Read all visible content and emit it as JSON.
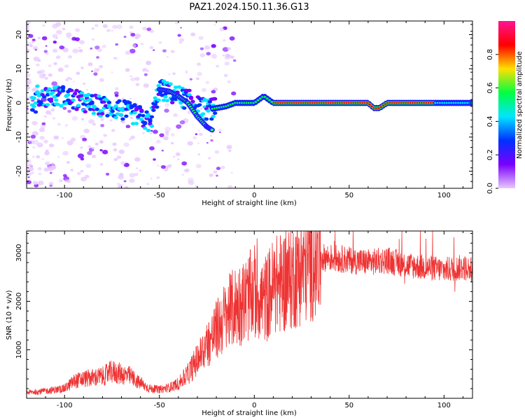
{
  "title": "PAZ1.2024.150.11.36.G13",
  "colors": {
    "spectral_scale": [
      "#e8c8ff",
      "#7a00ff",
      "#0030ff",
      "#00e5ff",
      "#00ff40",
      "#ffe000",
      "#ff0000",
      "#ff1493"
    ],
    "snr_line": "#ee3333"
  },
  "chart_data": [
    {
      "type": "heatmap",
      "title": "PAZ1.2024.150.11.36.G13",
      "xlabel": "Height of straight line (km)",
      "ylabel": "Frequency (Hz)",
      "xlim": [
        -120,
        115
      ],
      "ylim": [
        -25,
        24
      ],
      "xticks": [
        -100,
        -50,
        0,
        50,
        100
      ],
      "yticks": [
        -20,
        -10,
        0,
        10,
        20
      ],
      "colorbar": {
        "label": "Normalized spectral amplitude",
        "range": [
          0,
          1
        ],
        "ticks": [
          "0.0",
          "0.2",
          "0.4",
          "0.6",
          "0.8"
        ]
      },
      "ridge": {
        "description_points_x": [
          -115,
          -100,
          -90,
          -80,
          -70,
          -60,
          -55,
          -50,
          -45,
          -40,
          -35,
          -30,
          -25,
          -20,
          -15,
          -10,
          -5,
          0,
          5,
          10,
          15,
          20,
          30,
          40,
          50,
          55,
          60,
          63,
          66,
          70,
          80,
          90,
          100,
          110,
          115
        ],
        "description_points_y": [
          2,
          2,
          0,
          -1,
          -2,
          -4,
          -6,
          4,
          3,
          2,
          1,
          -1,
          -2,
          -1.5,
          -1,
          0,
          0,
          0,
          2,
          0,
          0,
          0,
          0,
          0,
          0,
          0,
          0,
          -1.5,
          -1.5,
          0,
          0,
          0,
          0,
          0,
          0
        ]
      },
      "secondary_branch": {
        "x": [
          -50,
          -45,
          -40,
          -35,
          -30,
          -25,
          -22
        ],
        "y": [
          4,
          3.5,
          2,
          0,
          -4,
          -7,
          -8
        ]
      }
    },
    {
      "type": "line",
      "xlabel": "Height of straight line (km)",
      "ylabel": "SNR (10 * v/v)",
      "xlim": [
        -120,
        115
      ],
      "ylim": [
        0,
        3450
      ],
      "xticks": [
        -100,
        -50,
        0,
        50,
        100
      ],
      "yticks": [
        1000,
        2000,
        3000
      ],
      "series": [
        {
          "x": [
            -120,
            -110,
            -100,
            -95,
            -90,
            -80,
            -75,
            -70,
            -65,
            -60,
            -55,
            -50,
            -45,
            -40,
            -35,
            -30,
            -25,
            -20,
            -15,
            -10,
            -5,
            0,
            5,
            10,
            15,
            20,
            25,
            30,
            35,
            40,
            50,
            60,
            70,
            80,
            90,
            100,
            110,
            115
          ],
          "y": [
            120,
            150,
            200,
            350,
            400,
            450,
            550,
            500,
            450,
            300,
            200,
            180,
            220,
            300,
            500,
            800,
            1100,
            1400,
            1700,
            1900,
            2000,
            2200,
            2000,
            2300,
            2400,
            2500,
            2700,
            2850,
            2900,
            2900,
            2850,
            2800,
            2850,
            2750,
            2700,
            2650,
            2700,
            2650
          ]
        }
      ]
    }
  ]
}
